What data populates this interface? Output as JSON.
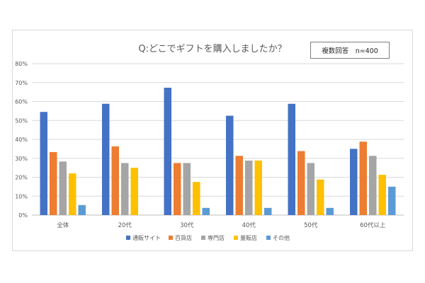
{
  "chart_data": {
    "type": "bar",
    "title": "Q:どこでギフトを購入しましたか？",
    "note": "複数回答　n=400",
    "categories": [
      "全体",
      "20代",
      "30代",
      "40代",
      "50代",
      "60代以上"
    ],
    "series": [
      {
        "name": "通販サイト",
        "color": "#4472c4",
        "values": [
          54.5,
          58.8,
          67.3,
          52.5,
          58.8,
          35.0
        ]
      },
      {
        "name": "百貨店",
        "color": "#ed7d31",
        "values": [
          33.3,
          36.3,
          27.5,
          31.3,
          33.8,
          38.8
        ]
      },
      {
        "name": "専門店",
        "color": "#a5a5a5",
        "values": [
          28.3,
          27.5,
          27.5,
          28.8,
          27.5,
          31.3
        ]
      },
      {
        "name": "量販店",
        "color": "#ffc000",
        "values": [
          22.0,
          25.0,
          17.5,
          28.8,
          18.8,
          21.3
        ]
      },
      {
        "name": "その他",
        "color": "#5b9bd5",
        "values": [
          5.3,
          0,
          3.8,
          3.8,
          3.8,
          15.0
        ]
      }
    ],
    "yticks": [
      "0%",
      "10%",
      "20%",
      "30%",
      "40%",
      "50%",
      "60%",
      "70%",
      "80%"
    ],
    "ylim": [
      0,
      80
    ],
    "grid": true,
    "legend": "bottom"
  }
}
